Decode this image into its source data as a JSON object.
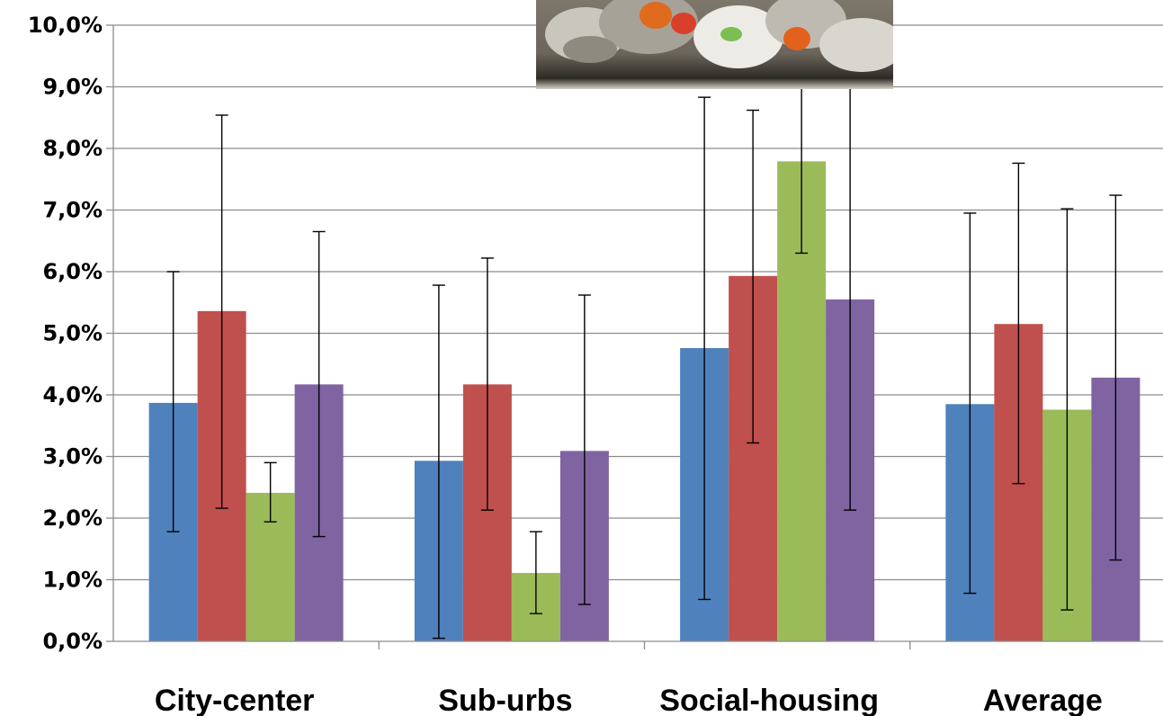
{
  "chart_data": {
    "type": "bar",
    "categories": [
      "City-center",
      "Sub-urbs",
      "Social-housing",
      "Average"
    ],
    "series": [
      {
        "color": "#4f81bd",
        "values": [
          3.87,
          2.93,
          4.76,
          3.85
        ],
        "error_low": [
          1.78,
          0.05,
          0.68,
          0.78
        ],
        "error_high": [
          6.0,
          5.78,
          8.83,
          6.95
        ]
      },
      {
        "color": "#c0504d",
        "values": [
          5.36,
          4.17,
          5.93,
          5.15
        ],
        "error_low": [
          2.16,
          2.13,
          3.22,
          2.56
        ],
        "error_high": [
          8.54,
          6.22,
          8.62,
          7.76
        ]
      },
      {
        "color": "#9bbb59",
        "values": [
          2.41,
          1.11,
          7.79,
          3.76
        ],
        "error_low": [
          1.94,
          0.45,
          6.3,
          0.51
        ],
        "error_high": [
          2.9,
          1.78,
          9.3,
          7.02
        ]
      },
      {
        "color": "#8064a2",
        "values": [
          4.17,
          3.09,
          5.55,
          4.28
        ],
        "error_low": [
          1.7,
          0.6,
          2.13,
          1.32
        ],
        "error_high": [
          6.65,
          5.62,
          9.2,
          7.24
        ]
      }
    ],
    "ylim": [
      0,
      10
    ],
    "yticks": [
      "0,0%",
      "1,0%",
      "2,0%",
      "3,0%",
      "4,0%",
      "5,0%",
      "6,0%",
      "7,0%",
      "8,0%",
      "9,0%",
      "10,0%"
    ],
    "grid": true,
    "legend": "none",
    "error_bars": true
  },
  "photo": {
    "icon": "food-waste-photo"
  }
}
